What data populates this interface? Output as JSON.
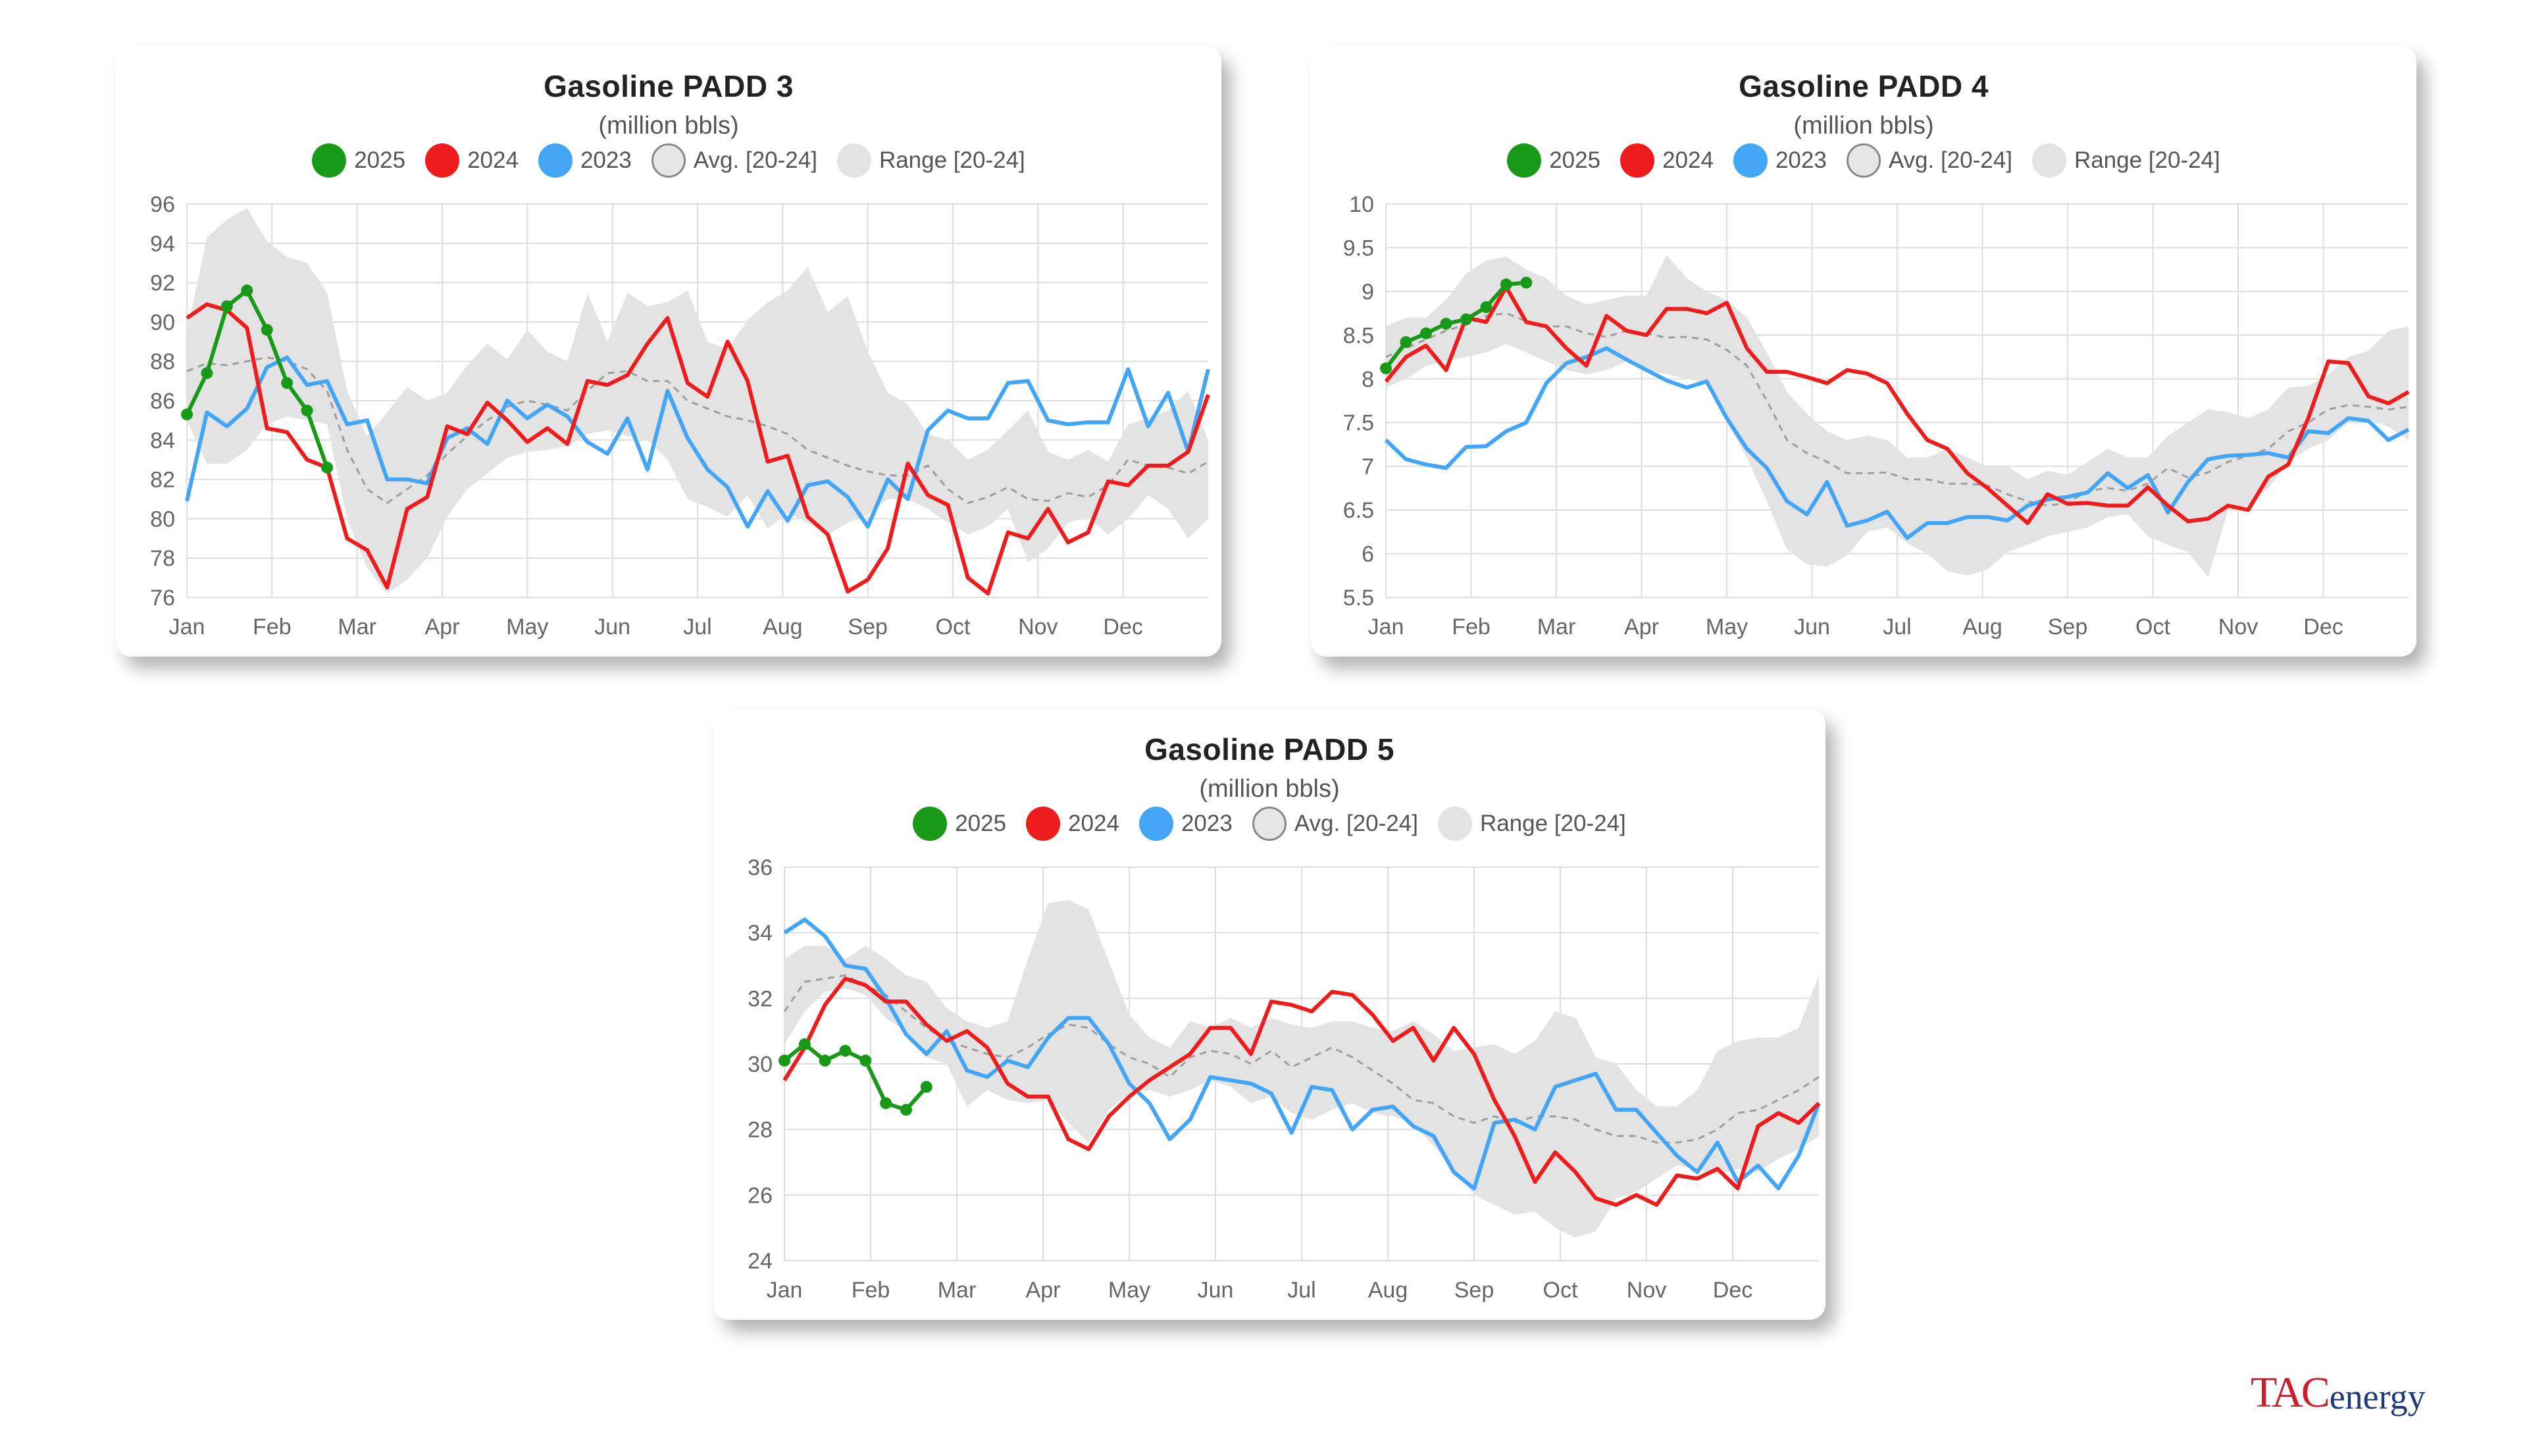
{
  "months": [
    "Jan",
    "Feb",
    "Mar",
    "Apr",
    "May",
    "Jun",
    "Jul",
    "Aug",
    "Sep",
    "Oct",
    "Nov",
    "Dec"
  ],
  "legend": {
    "s2025": "2025",
    "s2024": "2024",
    "s2023": "2023",
    "avg": "Avg. [20-24]",
    "range": "Range [20-24]"
  },
  "colors": {
    "c2025": "#189a18",
    "c2024": "#ee1c1c",
    "c2023": "#42a5f5",
    "avg": "#9e9e9e",
    "range": "#e3e3e3"
  },
  "logo": {
    "tac": "TAC",
    "energy": "energy"
  },
  "chart_data": [
    {
      "type": "line",
      "title": "Gasoline PADD 3",
      "subtitle": "(million bbls)",
      "ylim": [
        76,
        96
      ],
      "yticks": [
        96,
        94,
        92,
        90,
        88,
        86,
        84,
        82,
        80,
        78,
        76
      ],
      "ytick_labels": [
        "96",
        "94",
        "92",
        "90",
        "88",
        "86",
        "84",
        "82",
        "80",
        "78",
        "76"
      ],
      "x_unit": "week of year",
      "series": [
        {
          "name": "2025",
          "values": [
            85.3,
            87.4,
            90.8,
            91.6,
            89.6,
            86.9,
            85.5,
            82.6
          ]
        },
        {
          "name": "2024",
          "values": [
            90.2,
            90.9,
            90.6,
            89.7,
            84.6,
            84.4,
            83.0,
            82.6,
            79.0,
            78.4,
            76.5,
            80.5,
            81.1,
            84.7,
            84.3,
            85.9,
            85.0,
            83.9,
            84.6,
            83.8,
            87.0,
            86.8,
            87.3,
            88.9,
            90.2,
            86.9,
            86.2,
            89.0,
            87.0,
            82.9,
            83.2,
            80.1,
            79.2,
            76.3,
            76.9,
            78.5,
            82.8,
            81.2,
            80.7,
            77.0,
            76.2,
            79.3,
            79.0,
            80.5,
            78.8,
            79.3,
            81.9,
            81.7,
            82.7,
            82.7,
            83.4,
            86.3
          ]
        },
        {
          "name": "2023",
          "values": [
            80.9,
            85.4,
            84.7,
            85.6,
            87.7,
            88.2,
            86.8,
            87.0,
            84.8,
            85.0,
            82.0,
            82.0,
            81.8,
            84.1,
            84.6,
            83.8,
            86.0,
            85.1,
            85.8,
            85.2,
            83.9,
            83.3,
            85.1,
            82.5,
            86.5,
            84.1,
            82.5,
            81.6,
            79.6,
            81.4,
            79.9,
            81.7,
            81.9,
            81.1,
            79.6,
            82.0,
            81.0,
            84.5,
            85.5,
            85.1,
            85.1,
            86.9,
            87.0,
            85.0,
            84.8,
            84.9,
            84.9,
            87.6,
            84.7,
            86.4,
            83.4,
            87.6
          ]
        },
        {
          "name": "Avg. [20-24]",
          "values": [
            87.5,
            87.9,
            87.8,
            88.0,
            88.2,
            88.0,
            87.6,
            86.5,
            83.5,
            81.5,
            80.8,
            81.5,
            82.2,
            83.3,
            84.2,
            85.0,
            85.7,
            86.0,
            85.8,
            85.5,
            86.5,
            87.4,
            87.5,
            87.0,
            87.0,
            86.0,
            85.6,
            85.2,
            85.0,
            84.7,
            84.3,
            83.5,
            83.1,
            82.7,
            82.4,
            82.2,
            82.2,
            82.7,
            81.5,
            80.8,
            81.1,
            81.6,
            81.0,
            80.9,
            81.3,
            81.1,
            81.7,
            83.0,
            82.7,
            82.6,
            82.3,
            82.9
          ]
        },
        {
          "name": "Range low",
          "values": [
            85.0,
            82.8,
            82.8,
            83.5,
            84.8,
            85.2,
            85.0,
            84.8,
            80.0,
            77.5,
            76.2,
            76.9,
            78.0,
            80.1,
            81.5,
            82.3,
            83.1,
            83.4,
            83.5,
            83.7,
            84.3,
            84.5,
            84.2,
            84.0,
            83.0,
            81.0,
            80.6,
            80.1,
            81.2,
            79.5,
            80.3,
            79.8,
            79.2,
            79.8,
            80.2,
            81.0,
            81.0,
            80.5,
            79.8,
            79.2,
            79.6,
            80.5,
            77.8,
            78.5,
            79.8,
            80.1,
            79.2,
            80.0,
            81.2,
            80.5,
            79.0,
            80.0
          ]
        },
        {
          "name": "Range high",
          "values": [
            89.5,
            94.3,
            95.2,
            95.8,
            94.1,
            93.3,
            93.0,
            91.5,
            86.5,
            84.2,
            85.4,
            86.7,
            86.0,
            86.4,
            87.8,
            88.9,
            88.1,
            89.6,
            88.5,
            88.0,
            91.5,
            89.0,
            91.5,
            90.8,
            91.0,
            91.6,
            89.0,
            88.6,
            90.1,
            91.0,
            91.6,
            92.8,
            90.5,
            91.3,
            88.5,
            86.4,
            85.8,
            84.3,
            84.0,
            83.0,
            83.5,
            84.5,
            85.5,
            83.4,
            83.0,
            83.5,
            82.9,
            84.8,
            85.1,
            85.5,
            86.5,
            84.0
          ]
        }
      ]
    },
    {
      "type": "line",
      "title": "Gasoline PADD 4",
      "subtitle": "(million bbls)",
      "ylim": [
        5.5,
        10
      ],
      "yticks": [
        10,
        9.5,
        9,
        8.5,
        8,
        7.5,
        7,
        6.5,
        6,
        5.5
      ],
      "ytick_labels": [
        "10",
        "9.5",
        "9",
        "8.5",
        "8",
        "7.5",
        "7",
        "6.5",
        "6",
        "5.5"
      ],
      "x_unit": "week of year",
      "series": [
        {
          "name": "2025",
          "values": [
            8.12,
            8.42,
            8.52,
            8.63,
            8.68,
            8.82,
            9.08,
            9.1
          ]
        },
        {
          "name": "2024",
          "values": [
            7.97,
            8.25,
            8.38,
            8.1,
            8.7,
            8.65,
            9.05,
            8.65,
            8.6,
            8.35,
            8.15,
            8.72,
            8.55,
            8.5,
            8.8,
            8.8,
            8.75,
            8.87,
            8.35,
            8.08,
            8.08,
            8.02,
            7.95,
            8.1,
            8.06,
            7.95,
            7.6,
            7.3,
            7.2,
            6.92,
            6.75,
            6.55,
            6.35,
            6.68,
            6.57,
            6.58,
            6.55,
            6.55,
            6.76,
            6.55,
            6.37,
            6.4,
            6.55,
            6.5,
            6.88,
            7.02,
            7.55,
            8.2,
            8.18,
            7.8,
            7.72,
            7.85
          ]
        },
        {
          "name": "2023",
          "values": [
            7.3,
            7.08,
            7.02,
            6.98,
            7.22,
            7.23,
            7.4,
            7.5,
            7.95,
            8.18,
            8.25,
            8.35,
            8.22,
            8.1,
            7.98,
            7.9,
            7.97,
            7.55,
            7.2,
            6.98,
            6.6,
            6.45,
            6.82,
            6.32,
            6.38,
            6.48,
            6.18,
            6.35,
            6.35,
            6.42,
            6.42,
            6.38,
            6.55,
            6.62,
            6.65,
            6.7,
            6.92,
            6.75,
            6.9,
            6.47,
            6.82,
            7.08,
            7.12,
            7.13,
            7.15,
            7.1,
            7.4,
            7.38,
            7.55,
            7.52,
            7.3,
            7.42
          ]
        },
        {
          "name": "Avg. [20-24]",
          "values": [
            8.25,
            8.35,
            8.45,
            8.55,
            8.62,
            8.72,
            8.75,
            8.66,
            8.6,
            8.6,
            8.52,
            8.48,
            8.55,
            8.52,
            8.47,
            8.48,
            8.45,
            8.33,
            8.15,
            7.75,
            7.3,
            7.15,
            7.05,
            6.92,
            6.92,
            6.93,
            6.85,
            6.85,
            6.8,
            6.8,
            6.78,
            6.68,
            6.6,
            6.55,
            6.58,
            6.72,
            6.75,
            6.72,
            6.8,
            6.98,
            6.87,
            6.93,
            7.05,
            7.12,
            7.2,
            7.4,
            7.5,
            7.65,
            7.7,
            7.68,
            7.65,
            7.68
          ]
        },
        {
          "name": "Range low",
          "values": [
            7.9,
            8.0,
            8.15,
            8.2,
            8.25,
            8.3,
            8.4,
            8.3,
            8.2,
            8.1,
            8.05,
            8.1,
            8.2,
            8.1,
            8.05,
            8.0,
            7.95,
            7.5,
            7.1,
            6.6,
            6.05,
            5.88,
            5.85,
            5.98,
            6.25,
            6.3,
            6.12,
            6.0,
            5.8,
            5.75,
            5.82,
            6.02,
            6.1,
            6.2,
            6.25,
            6.3,
            6.42,
            6.45,
            6.2,
            6.1,
            6.02,
            5.73,
            6.5,
            6.55,
            6.75,
            7.05,
            7.2,
            7.3,
            7.5,
            7.55,
            7.45,
            7.3
          ]
        },
        {
          "name": "Range high",
          "values": [
            8.6,
            8.7,
            8.7,
            8.9,
            9.2,
            9.35,
            9.4,
            9.25,
            9.15,
            8.95,
            8.85,
            8.9,
            8.95,
            8.95,
            9.42,
            9.15,
            9.0,
            8.9,
            8.7,
            8.3,
            7.85,
            7.6,
            7.4,
            7.3,
            7.35,
            7.3,
            7.1,
            7.1,
            7.2,
            7.1,
            7.0,
            7.0,
            6.85,
            6.95,
            6.9,
            7.05,
            7.2,
            7.1,
            7.1,
            7.35,
            7.5,
            7.65,
            7.62,
            7.55,
            7.65,
            7.9,
            7.92,
            8.05,
            8.25,
            8.32,
            8.55,
            8.6
          ]
        }
      ]
    },
    {
      "type": "line",
      "title": "Gasoline PADD 5",
      "subtitle": "(million bbls)",
      "ylim": [
        24,
        36
      ],
      "yticks": [
        36,
        34,
        32,
        30,
        28,
        26,
        24
      ],
      "ytick_labels": [
        "36",
        "34",
        "32",
        "30",
        "28",
        "26",
        "24"
      ],
      "x_unit": "week of year",
      "series": [
        {
          "name": "2025",
          "values": [
            30.1,
            30.6,
            30.1,
            30.4,
            30.1,
            28.8,
            28.6,
            29.3
          ]
        },
        {
          "name": "2024",
          "values": [
            29.5,
            30.5,
            31.8,
            32.6,
            32.4,
            31.9,
            31.9,
            31.2,
            30.7,
            31.0,
            30.5,
            29.4,
            29.0,
            29.0,
            27.7,
            27.4,
            28.4,
            29.0,
            29.5,
            29.9,
            30.3,
            31.1,
            31.1,
            30.3,
            31.9,
            31.8,
            31.6,
            32.2,
            32.1,
            31.5,
            30.7,
            31.1,
            30.1,
            31.1,
            30.3,
            28.9,
            27.8,
            26.4,
            27.3,
            26.7,
            25.9,
            25.7,
            26.0,
            25.7,
            26.6,
            26.5,
            26.8,
            26.2,
            28.1,
            28.5,
            28.2,
            28.8
          ]
        },
        {
          "name": "2023",
          "values": [
            34.0,
            34.4,
            33.9,
            33.0,
            32.9,
            32.0,
            30.9,
            30.3,
            31.0,
            29.8,
            29.6,
            30.1,
            29.9,
            30.8,
            31.4,
            31.4,
            30.6,
            29.4,
            28.8,
            27.7,
            28.3,
            29.6,
            29.5,
            29.4,
            29.1,
            27.9,
            29.3,
            29.2,
            28.0,
            28.6,
            28.7,
            28.1,
            27.8,
            26.7,
            26.2,
            28.2,
            28.3,
            28.0,
            29.3,
            29.5,
            29.7,
            28.6,
            28.6,
            27.9,
            27.2,
            26.7,
            27.6,
            26.4,
            26.9,
            26.2,
            27.2,
            28.8
          ]
        },
        {
          "name": "Avg. [20-24]",
          "values": [
            31.6,
            32.5,
            32.6,
            32.7,
            32.4,
            32.1,
            31.6,
            31.1,
            30.7,
            30.5,
            30.3,
            30.2,
            30.5,
            30.9,
            31.2,
            31.1,
            30.6,
            30.2,
            30.0,
            29.6,
            30.2,
            30.4,
            30.3,
            30.0,
            30.4,
            29.9,
            30.2,
            30.5,
            30.2,
            29.8,
            29.4,
            28.9,
            28.8,
            28.4,
            28.2,
            28.4,
            28.2,
            28.4,
            28.4,
            28.3,
            28.0,
            27.8,
            27.8,
            27.6,
            27.6,
            27.7,
            28.0,
            28.5,
            28.6,
            28.9,
            29.2,
            29.6
          ]
        },
        {
          "name": "Range low",
          "values": [
            30.6,
            31.6,
            32.2,
            32.3,
            32.1,
            31.4,
            31.0,
            30.2,
            30.0,
            28.7,
            29.2,
            28.9,
            28.8,
            28.9,
            28.2,
            27.6,
            28.6,
            29.1,
            29.2,
            29.0,
            29.2,
            29.5,
            29.3,
            28.8,
            29.0,
            28.5,
            28.3,
            28.6,
            28.8,
            28.5,
            28.4,
            28.2,
            27.5,
            26.8,
            26.0,
            25.7,
            25.4,
            25.5,
            25.0,
            24.7,
            24.9,
            25.9,
            26.1,
            26.5,
            26.9,
            26.8,
            26.6,
            26.8,
            26.7,
            27.1,
            27.4,
            27.8
          ]
        },
        {
          "name": "Range high",
          "values": [
            33.2,
            33.6,
            33.6,
            33.2,
            33.6,
            33.2,
            32.7,
            32.5,
            31.7,
            31.3,
            31.1,
            31.3,
            33.2,
            34.9,
            35.0,
            34.7,
            33.1,
            31.5,
            30.8,
            30.5,
            31.3,
            31.1,
            31.4,
            31.1,
            31.4,
            31.2,
            31.1,
            31.3,
            31.3,
            31.1,
            31.0,
            31.3,
            30.9,
            30.4,
            30.5,
            30.6,
            30.3,
            30.7,
            31.6,
            31.4,
            30.2,
            30.0,
            29.2,
            28.7,
            28.7,
            29.2,
            30.4,
            30.7,
            30.8,
            30.8,
            31.1,
            32.7
          ]
        }
      ]
    }
  ]
}
